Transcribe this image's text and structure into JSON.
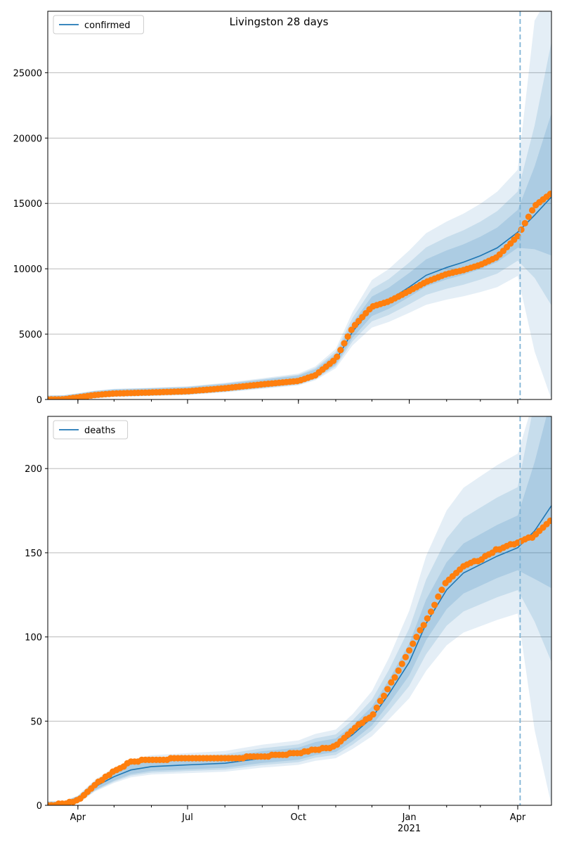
{
  "figure": {
    "title": "Livingston 28 days"
  },
  "colors": {
    "model_line": "#1f77b4",
    "observed": "#ff7f0e",
    "band": "#1f77b4",
    "vline": "#7fb3d5",
    "grid": "#b0b0b0"
  },
  "x_axis": {
    "ticks": [
      {
        "date": "2020-04-01",
        "label": "Apr",
        "sublabel": ""
      },
      {
        "date": "2020-07-01",
        "label": "Jul",
        "sublabel": ""
      },
      {
        "date": "2020-10-01",
        "label": "Oct",
        "sublabel": ""
      },
      {
        "date": "2021-01-01",
        "label": "Jan",
        "sublabel": "2021"
      },
      {
        "date": "2021-04-01",
        "label": "Apr",
        "sublabel": ""
      }
    ],
    "xlim": [
      "2020-03-07",
      "2021-04-29"
    ],
    "forecast_start": "2021-04-03"
  },
  "chart_data": [
    {
      "type": "line",
      "legend": "confirmed",
      "legend_placement": "top-left",
      "grid": true,
      "ylim": [
        0,
        29700
      ],
      "yticks": [
        0,
        5000,
        10000,
        15000,
        20000,
        25000
      ],
      "series": [
        {
          "name": "confirmed",
          "x": [
            "2020-03-07",
            "2020-03-20",
            "2020-04-01",
            "2020-04-15",
            "2020-05-01",
            "2020-06-01",
            "2020-07-01",
            "2020-08-01",
            "2020-09-01",
            "2020-10-01",
            "2020-10-15",
            "2020-11-01",
            "2020-11-15",
            "2020-12-01",
            "2020-12-15",
            "2021-01-01",
            "2021-01-15",
            "2021-02-01",
            "2021-02-15",
            "2021-03-01",
            "2021-03-15",
            "2021-04-01",
            "2021-04-15",
            "2021-04-29"
          ],
          "y": [
            0,
            20,
            150,
            330,
            450,
            530,
            620,
            850,
            1150,
            1450,
            1900,
            3000,
            5200,
            7000,
            7600,
            8600,
            9500,
            10100,
            10500,
            11000,
            11600,
            12800,
            14100,
            15500
          ]
        },
        {
          "name": "observed",
          "x": [
            "2020-03-07",
            "2020-03-20",
            "2020-04-01",
            "2020-04-15",
            "2020-05-01",
            "2020-06-01",
            "2020-07-01",
            "2020-08-01",
            "2020-09-01",
            "2020-10-01",
            "2020-10-15",
            "2020-11-01",
            "2020-11-15",
            "2020-12-01",
            "2020-12-15",
            "2021-01-01",
            "2021-01-15",
            "2021-02-01",
            "2021-02-15",
            "2021-03-01",
            "2021-03-15",
            "2021-04-01",
            "2021-04-15",
            "2021-04-29"
          ],
          "y": [
            0,
            15,
            160,
            340,
            460,
            540,
            630,
            860,
            1160,
            1420,
            1850,
            3100,
            5500,
            7100,
            7500,
            8300,
            9000,
            9600,
            9900,
            10300,
            10900,
            12500,
            14800,
            15800
          ]
        }
      ]
    },
    {
      "type": "line",
      "legend": "deaths",
      "legend_placement": "top-left",
      "grid": true,
      "ylim": [
        0,
        231
      ],
      "yticks": [
        0,
        50,
        100,
        150,
        200
      ],
      "series": [
        {
          "name": "deaths",
          "x": [
            "2020-03-07",
            "2020-03-20",
            "2020-04-01",
            "2020-04-15",
            "2020-05-01",
            "2020-05-15",
            "2020-06-01",
            "2020-07-01",
            "2020-08-01",
            "2020-09-01",
            "2020-10-01",
            "2020-10-15",
            "2020-11-01",
            "2020-11-15",
            "2020-12-01",
            "2020-12-15",
            "2021-01-01",
            "2021-01-15",
            "2021-02-01",
            "2021-02-15",
            "2021-03-01",
            "2021-03-15",
            "2021-04-01",
            "2021-04-15",
            "2021-04-29"
          ],
          "y": [
            0,
            0,
            3,
            11,
            17,
            21,
            23,
            24,
            25,
            28,
            30,
            33,
            35,
            42,
            52,
            66,
            85,
            108,
            128,
            138,
            143,
            148,
            153,
            163,
            178
          ]
        },
        {
          "name": "observed",
          "x": [
            "2020-03-07",
            "2020-03-20",
            "2020-04-01",
            "2020-04-15",
            "2020-05-01",
            "2020-05-15",
            "2020-06-01",
            "2020-07-01",
            "2020-08-01",
            "2020-09-01",
            "2020-10-01",
            "2020-10-15",
            "2020-11-01",
            "2020-11-15",
            "2020-12-01",
            "2020-12-15",
            "2021-01-01",
            "2021-01-15",
            "2021-02-01",
            "2021-02-15",
            "2021-03-01",
            "2021-03-15",
            "2021-04-01",
            "2021-04-15",
            "2021-04-29"
          ],
          "y": [
            0,
            1,
            3,
            12,
            20,
            26,
            27,
            28,
            28,
            29,
            31,
            33,
            35,
            45,
            53,
            70,
            92,
            110,
            133,
            142,
            146,
            152,
            156,
            160,
            170
          ]
        }
      ]
    }
  ]
}
